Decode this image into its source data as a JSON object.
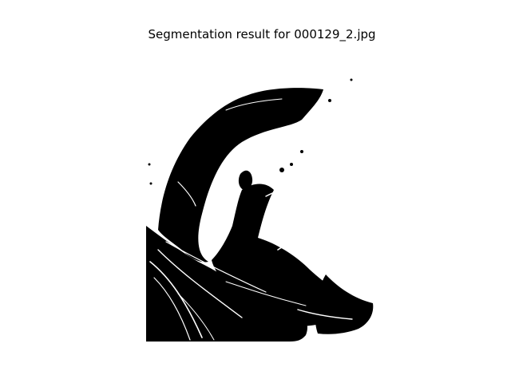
{
  "figure": {
    "title": "Segmentation result for 000129_2.jpg"
  },
  "image": {
    "colormap": "binary",
    "foreground_color": "#000000",
    "background_color": "#ffffff"
  }
}
